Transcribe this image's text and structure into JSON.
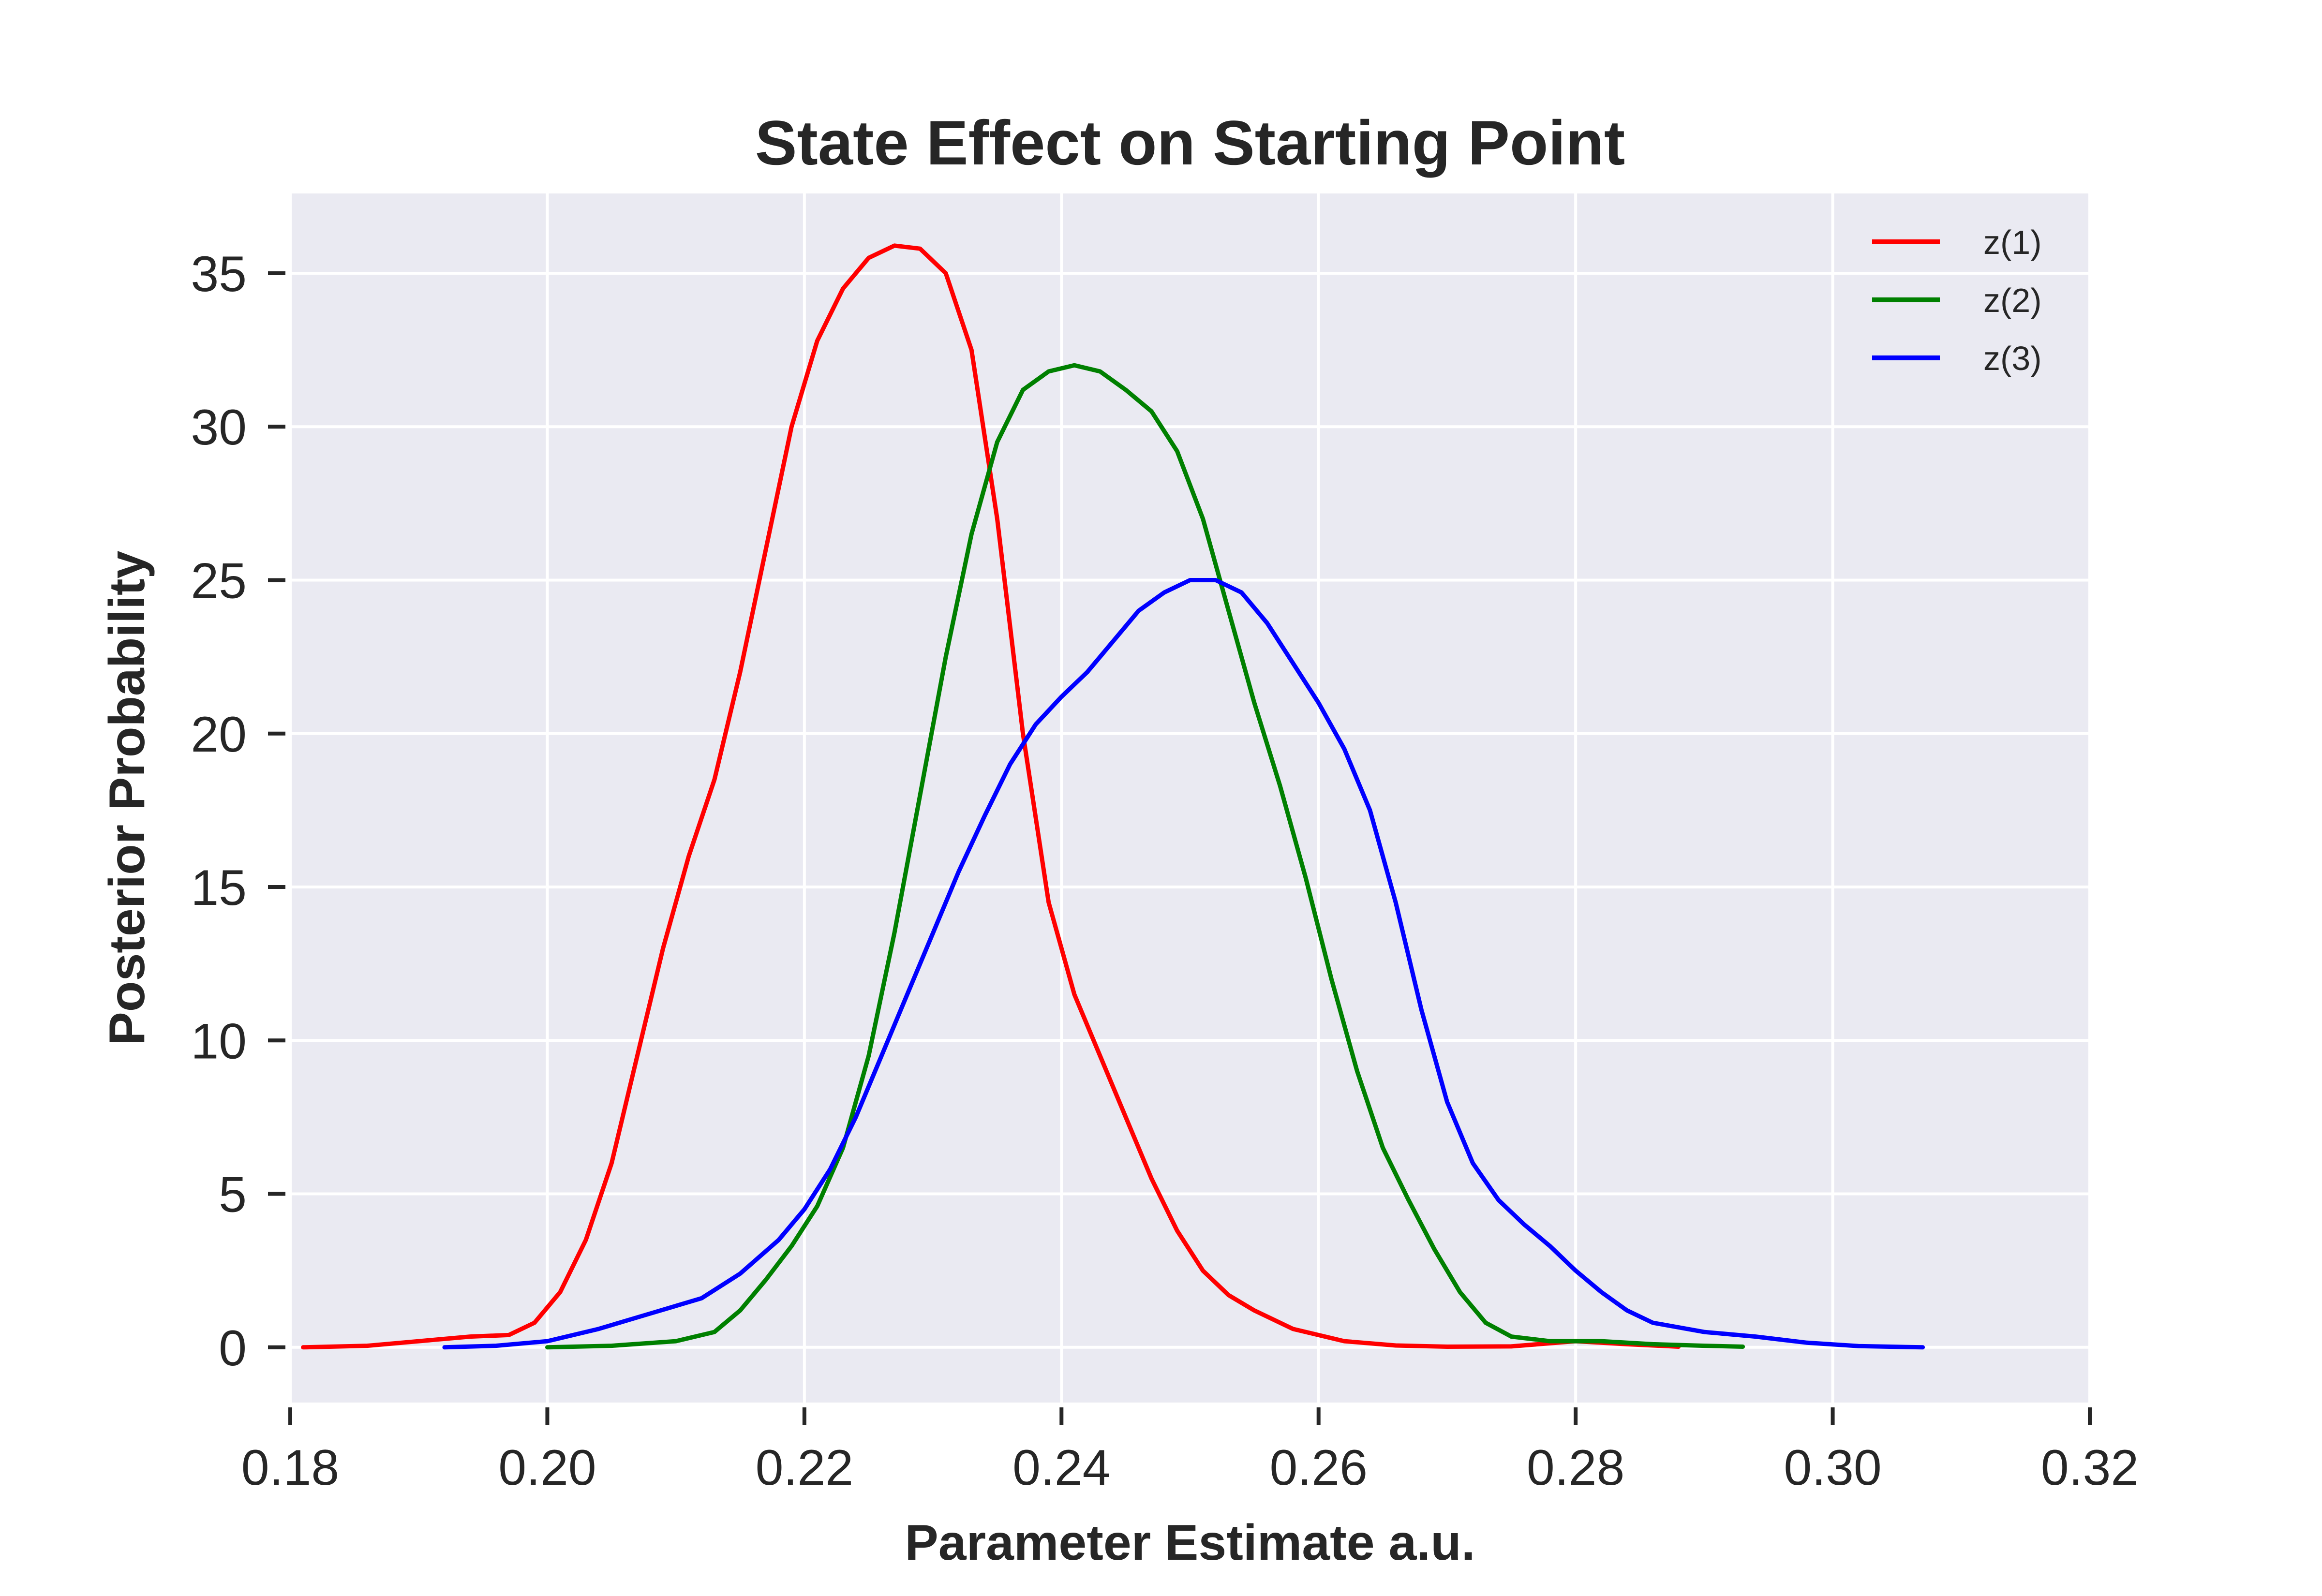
{
  "chart_data": {
    "type": "line",
    "title": "State Effect on Starting Point",
    "xlabel": "Parameter Estimate a.u.",
    "ylabel": "Posterior Probability",
    "xlim": [
      0.18,
      0.32
    ],
    "ylim": [
      -1.8,
      37.6
    ],
    "x_ticks": [
      "0.18",
      "0.20",
      "0.22",
      "0.24",
      "0.26",
      "0.28",
      "0.30",
      "0.32"
    ],
    "y_ticks": [
      "0",
      "5",
      "10",
      "15",
      "20",
      "25",
      "30",
      "35"
    ],
    "grid": true,
    "legend_position": "top-right",
    "series": [
      {
        "name": "z(1)",
        "color": "#ff0000",
        "points": [
          [
            0.181,
            0
          ],
          [
            0.186,
            0.05
          ],
          [
            0.19,
            0.2
          ],
          [
            0.194,
            0.35
          ],
          [
            0.197,
            0.4
          ],
          [
            0.199,
            0.8
          ],
          [
            0.201,
            1.8
          ],
          [
            0.203,
            3.5
          ],
          [
            0.205,
            6
          ],
          [
            0.207,
            9.5
          ],
          [
            0.209,
            13
          ],
          [
            0.211,
            16
          ],
          [
            0.213,
            18.5
          ],
          [
            0.215,
            22
          ],
          [
            0.217,
            26
          ],
          [
            0.219,
            30
          ],
          [
            0.221,
            32.8
          ],
          [
            0.223,
            34.5
          ],
          [
            0.225,
            35.5
          ],
          [
            0.227,
            35.9
          ],
          [
            0.229,
            35.8
          ],
          [
            0.231,
            35
          ],
          [
            0.233,
            32.5
          ],
          [
            0.235,
            27
          ],
          [
            0.237,
            20
          ],
          [
            0.239,
            14.5
          ],
          [
            0.241,
            11.5
          ],
          [
            0.243,
            9.5
          ],
          [
            0.245,
            7.5
          ],
          [
            0.247,
            5.5
          ],
          [
            0.249,
            3.8
          ],
          [
            0.251,
            2.5
          ],
          [
            0.253,
            1.7
          ],
          [
            0.255,
            1.2
          ],
          [
            0.258,
            0.6
          ],
          [
            0.262,
            0.2
          ],
          [
            0.266,
            0.06
          ],
          [
            0.27,
            0.02
          ],
          [
            0.275,
            0.03
          ],
          [
            0.28,
            0.2
          ],
          [
            0.284,
            0.1
          ],
          [
            0.288,
            0.02
          ]
        ]
      },
      {
        "name": "z(2)",
        "color": "#008000",
        "points": [
          [
            0.2,
            0
          ],
          [
            0.205,
            0.05
          ],
          [
            0.21,
            0.2
          ],
          [
            0.213,
            0.5
          ],
          [
            0.215,
            1.2
          ],
          [
            0.217,
            2.2
          ],
          [
            0.219,
            3.3
          ],
          [
            0.221,
            4.6
          ],
          [
            0.223,
            6.5
          ],
          [
            0.225,
            9.5
          ],
          [
            0.227,
            13.5
          ],
          [
            0.229,
            18
          ],
          [
            0.231,
            22.5
          ],
          [
            0.233,
            26.5
          ],
          [
            0.235,
            29.5
          ],
          [
            0.237,
            31.2
          ],
          [
            0.239,
            31.8
          ],
          [
            0.241,
            32
          ],
          [
            0.243,
            31.8
          ],
          [
            0.245,
            31.2
          ],
          [
            0.247,
            30.5
          ],
          [
            0.249,
            29.2
          ],
          [
            0.251,
            27
          ],
          [
            0.253,
            24
          ],
          [
            0.255,
            21
          ],
          [
            0.257,
            18.3
          ],
          [
            0.259,
            15.3
          ],
          [
            0.261,
            12
          ],
          [
            0.263,
            9
          ],
          [
            0.265,
            6.5
          ],
          [
            0.267,
            4.8
          ],
          [
            0.269,
            3.2
          ],
          [
            0.271,
            1.8
          ],
          [
            0.273,
            0.8
          ],
          [
            0.275,
            0.35
          ],
          [
            0.278,
            0.2
          ],
          [
            0.282,
            0.2
          ],
          [
            0.286,
            0.1
          ],
          [
            0.29,
            0.05
          ],
          [
            0.293,
            0.02
          ]
        ]
      },
      {
        "name": "z(3)",
        "color": "#0000ff",
        "points": [
          [
            0.192,
            0
          ],
          [
            0.196,
            0.05
          ],
          [
            0.2,
            0.2
          ],
          [
            0.204,
            0.6
          ],
          [
            0.208,
            1.1
          ],
          [
            0.212,
            1.6
          ],
          [
            0.215,
            2.4
          ],
          [
            0.218,
            3.5
          ],
          [
            0.22,
            4.5
          ],
          [
            0.222,
            5.8
          ],
          [
            0.224,
            7.5
          ],
          [
            0.226,
            9.5
          ],
          [
            0.228,
            11.5
          ],
          [
            0.23,
            13.5
          ],
          [
            0.232,
            15.5
          ],
          [
            0.234,
            17.3
          ],
          [
            0.236,
            19
          ],
          [
            0.238,
            20.3
          ],
          [
            0.24,
            21.2
          ],
          [
            0.242,
            22
          ],
          [
            0.244,
            23
          ],
          [
            0.246,
            24
          ],
          [
            0.248,
            24.6
          ],
          [
            0.25,
            25
          ],
          [
            0.252,
            25
          ],
          [
            0.254,
            24.6
          ],
          [
            0.256,
            23.6
          ],
          [
            0.258,
            22.3
          ],
          [
            0.26,
            21
          ],
          [
            0.262,
            19.5
          ],
          [
            0.264,
            17.5
          ],
          [
            0.266,
            14.5
          ],
          [
            0.268,
            11
          ],
          [
            0.27,
            8
          ],
          [
            0.272,
            6
          ],
          [
            0.274,
            4.8
          ],
          [
            0.276,
            4
          ],
          [
            0.278,
            3.3
          ],
          [
            0.28,
            2.5
          ],
          [
            0.282,
            1.8
          ],
          [
            0.284,
            1.2
          ],
          [
            0.286,
            0.8
          ],
          [
            0.29,
            0.5
          ],
          [
            0.294,
            0.35
          ],
          [
            0.298,
            0.15
          ],
          [
            0.302,
            0.04
          ],
          [
            0.307,
            0
          ]
        ]
      }
    ]
  }
}
